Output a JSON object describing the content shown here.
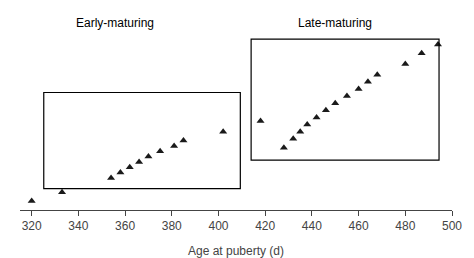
{
  "chart_data": {
    "type": "scatter",
    "annotations": [
      "Early-maturing",
      "Late-maturing"
    ],
    "xlabel": "Age at puberty (d)",
    "series": [
      {
        "x": [
          320,
          333,
          354,
          358,
          362,
          366,
          370,
          375,
          381,
          385,
          402,
          418
        ],
        "values": [
          0.05,
          0.1,
          0.18,
          0.21,
          0.24,
          0.27,
          0.3,
          0.33,
          0.36,
          0.39,
          0.44,
          0.5
        ],
        "color": "#1a1a1a",
        "marker": "triangle-up"
      },
      {
        "x": [
          428,
          432,
          435,
          438,
          442,
          446,
          450,
          455,
          460,
          464,
          468,
          480,
          487,
          494
        ],
        "values": [
          0.35,
          0.4,
          0.44,
          0.48,
          0.52,
          0.56,
          0.6,
          0.64,
          0.68,
          0.72,
          0.76,
          0.82,
          0.88,
          0.93
        ],
        "color": "#1a1a1a",
        "marker": "triangle-up"
      }
    ],
    "xlim": [
      315,
      500
    ],
    "xticks": [
      320,
      340,
      360,
      380,
      400,
      420,
      440,
      460,
      480,
      500
    ],
    "ylim": [
      0,
      1.0
    ],
    "tick_labels": "x",
    "grid": false
  }
}
